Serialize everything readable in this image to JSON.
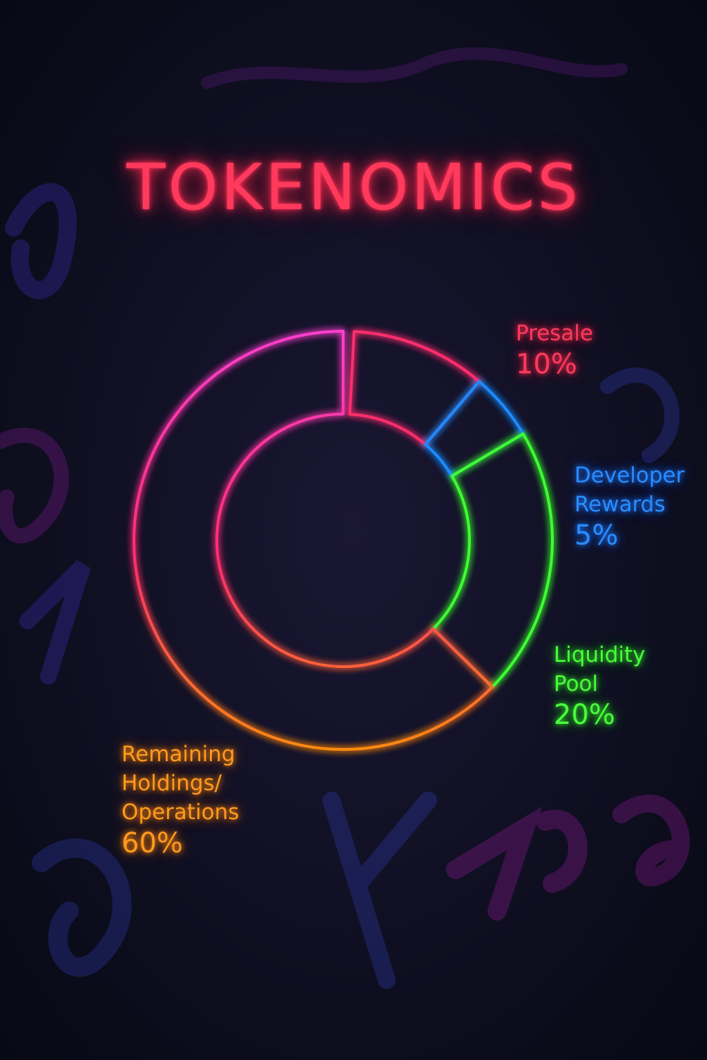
{
  "colors": {
    "background": "#0b0f1f",
    "title": "#ff3a5c",
    "presale": "#ff2d6e",
    "developer": "#1f8bff",
    "liquidity": "#3cff30",
    "remaining_start": "#ff3fd0",
    "remaining_end": "#ff8a10"
  },
  "chart_data": {
    "type": "pie",
    "title": "TOKENOMICS",
    "donut": true,
    "slices": [
      {
        "label_lines": [
          "Presale"
        ],
        "value": 10,
        "value_label": "10%",
        "color": "#ff2d6e"
      },
      {
        "label_lines": [
          "Developer",
          "Rewards"
        ],
        "value": 5,
        "value_label": "5%",
        "color": "#1f8bff"
      },
      {
        "label_lines": [
          "Liquidity",
          "Pool"
        ],
        "value": 20,
        "value_label": "20%",
        "color": "#3cff30"
      },
      {
        "label_lines": [
          "Remaining",
          "Holdings/",
          "Operations"
        ],
        "value": 60,
        "value_label": "60%",
        "color": "#ff8a10"
      }
    ]
  }
}
